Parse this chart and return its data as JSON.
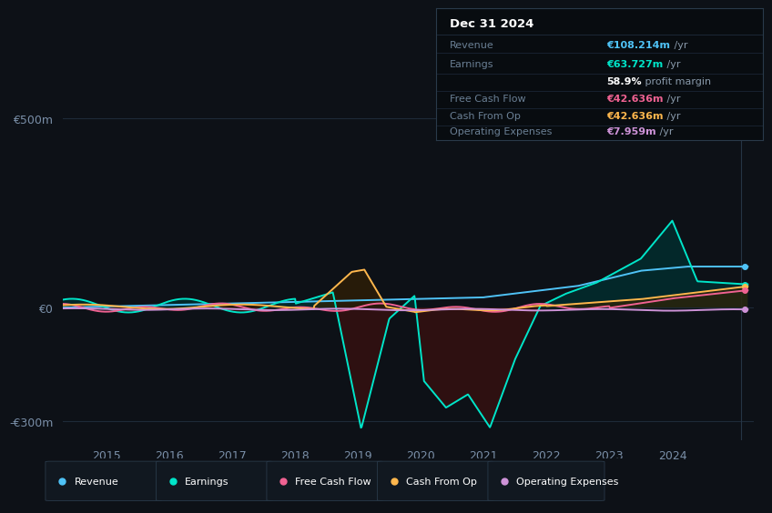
{
  "bg_color": "#0d1117",
  "grid_color": "#1e2a38",
  "title": "Dec 31 2024",
  "info_rows": [
    {
      "label": "Revenue",
      "value": "€108.214m",
      "suffix": " /yr",
      "color": "#4fc3f7"
    },
    {
      "label": "Earnings",
      "value": "€63.727m",
      "suffix": " /yr",
      "color": "#00e5c9"
    },
    {
      "label": "",
      "value": "58.9%",
      "suffix": " profit margin",
      "color": "#ffffff"
    },
    {
      "label": "Free Cash Flow",
      "value": "€42.636m",
      "suffix": " /yr",
      "color": "#f06292"
    },
    {
      "label": "Cash From Op",
      "value": "€42.636m",
      "suffix": " /yr",
      "color": "#ffb74d"
    },
    {
      "label": "Operating Expenses",
      "value": "€7.959m",
      "suffix": " /yr",
      "color": "#ce93d8"
    }
  ],
  "ylim": [
    -350,
    550
  ],
  "yticks": [
    -300,
    0,
    500
  ],
  "ytick_labels": [
    "-€300m",
    "€0",
    "€500m"
  ],
  "xlim": [
    2014.3,
    2025.3
  ],
  "xticks": [
    2015,
    2016,
    2017,
    2018,
    2019,
    2020,
    2021,
    2022,
    2023,
    2024
  ],
  "colors": {
    "revenue": "#4fc3f7",
    "earnings": "#00e5c9",
    "free_cash_flow": "#f06292",
    "cash_from_op": "#ffb74d",
    "op_expenses": "#ce93d8"
  },
  "legend_items": [
    {
      "label": "Revenue",
      "color": "#4fc3f7"
    },
    {
      "label": "Earnings",
      "color": "#00e5c9"
    },
    {
      "label": "Free Cash Flow",
      "color": "#f06292"
    },
    {
      "label": "Cash From Op",
      "color": "#ffb74d"
    },
    {
      "label": "Operating Expenses",
      "color": "#ce93d8"
    }
  ]
}
